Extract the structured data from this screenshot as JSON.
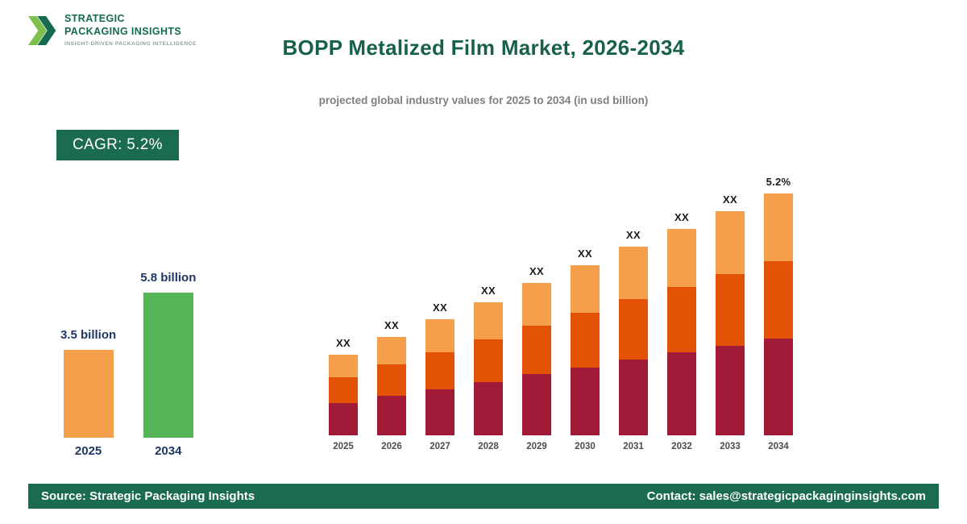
{
  "brand": {
    "name_line1": "STRATEGIC",
    "name_line2": "PACKAGING INSIGHTS",
    "tagline": "INSIGHT-DRIVEN PACKAGING INTELLIGENCE"
  },
  "header": {
    "title": "BOPP Metalized Film Market, 2026-2034",
    "subtitle": "projected global industry values for 2025 to 2034 (in usd billion)"
  },
  "badge": {
    "label": "CAGR: 5.2%"
  },
  "footer": {
    "source": "Source: Strategic Packaging Insights",
    "contact": "Contact: sales@strategicpackaginginsights.com"
  },
  "colors": {
    "brand_green": "#1b6a52",
    "title_green": "#17604c",
    "navy_label": "#1f3864",
    "orange": "#f59e4c",
    "green_bar": "#53b556",
    "maroon": "#a11a38",
    "dark_orange": "#e35205"
  },
  "chart_data": [
    {
      "type": "bar",
      "name": "market-size-comparison",
      "unit": "usd billion",
      "categories": [
        "2025",
        "2034"
      ],
      "values": [
        3.5,
        5.8
      ],
      "value_labels": [
        "3.5 billion",
        "5.8 billion"
      ],
      "bar_colors": [
        "#f59e4c",
        "#53b556"
      ],
      "ylim": [
        0,
        5.8
      ],
      "grid": false,
      "legend": false
    },
    {
      "type": "bar",
      "stacked": true,
      "name": "projected-yearly-values",
      "unit": "usd billion",
      "values_estimated": true,
      "categories": [
        "2025",
        "2026",
        "2027",
        "2028",
        "2029",
        "2030",
        "2031",
        "2032",
        "2033",
        "2034"
      ],
      "series": [
        {
          "name": "segment-bottom",
          "color": "#a11a38",
          "values": [
            1.4,
            1.5,
            1.6,
            1.7,
            1.81,
            1.91,
            2.02,
            2.12,
            2.22,
            2.32
          ]
        },
        {
          "name": "segment-middle",
          "color": "#e35205",
          "values": [
            1.12,
            1.2,
            1.28,
            1.36,
            1.45,
            1.53,
            1.61,
            1.69,
            1.78,
            1.86
          ]
        },
        {
          "name": "segment-top",
          "color": "#f59e4c",
          "values": [
            0.98,
            1.05,
            1.13,
            1.19,
            1.26,
            1.34,
            1.41,
            1.48,
            1.55,
            1.62
          ]
        }
      ],
      "bar_labels": [
        "XX",
        "XX",
        "XX",
        "XX",
        "XX",
        "XX",
        "XX",
        "XX",
        "XX",
        "5.2%"
      ],
      "display_ylim": [
        2.35,
        5.8
      ],
      "grid": false,
      "legend": false
    }
  ]
}
